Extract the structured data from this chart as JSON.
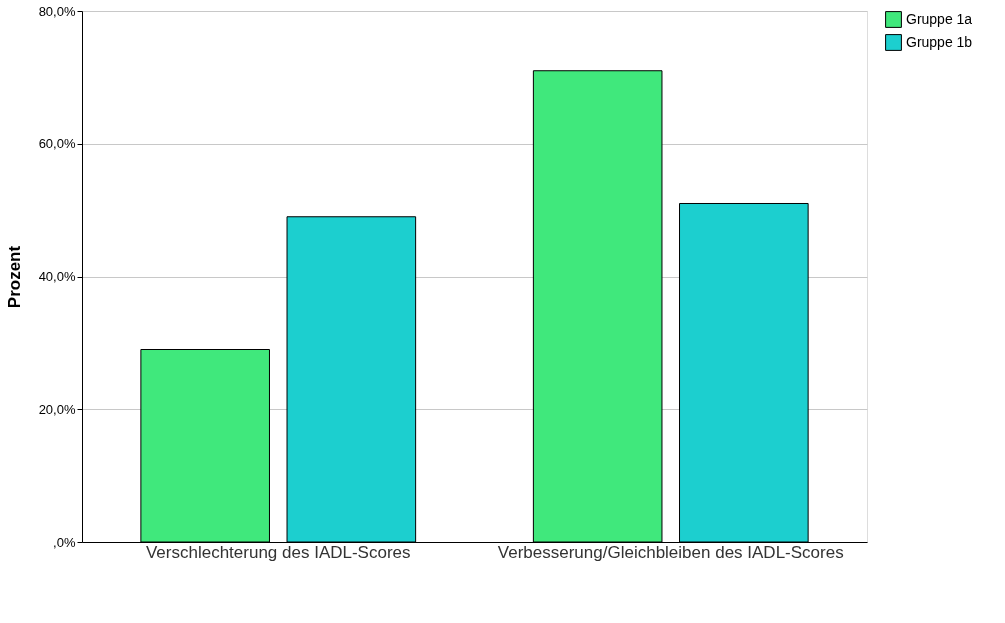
{
  "chart_data": {
    "type": "bar",
    "ylabel": "Prozent",
    "categories": [
      "Verschlechterung des IADL-Scores",
      "Verbesserung/Gleichbleiben des IADL-Scores"
    ],
    "series": [
      {
        "name": "Gruppe 1a",
        "color": "#40e87c",
        "values": [
          29,
          71
        ]
      },
      {
        "name": "Gruppe 1b",
        "color": "#1ccfcf",
        "values": [
          49,
          51
        ]
      }
    ],
    "ylim": [
      0,
      80
    ],
    "yticks": [
      {
        "value": 0,
        "label": ",0%"
      },
      {
        "value": 20,
        "label": "20,0%"
      },
      {
        "value": 40,
        "label": "40,0%"
      },
      {
        "value": 60,
        "label": "60,0%"
      },
      {
        "value": 80,
        "label": "80,0%"
      }
    ],
    "grid": "y",
    "legend": "top right"
  }
}
